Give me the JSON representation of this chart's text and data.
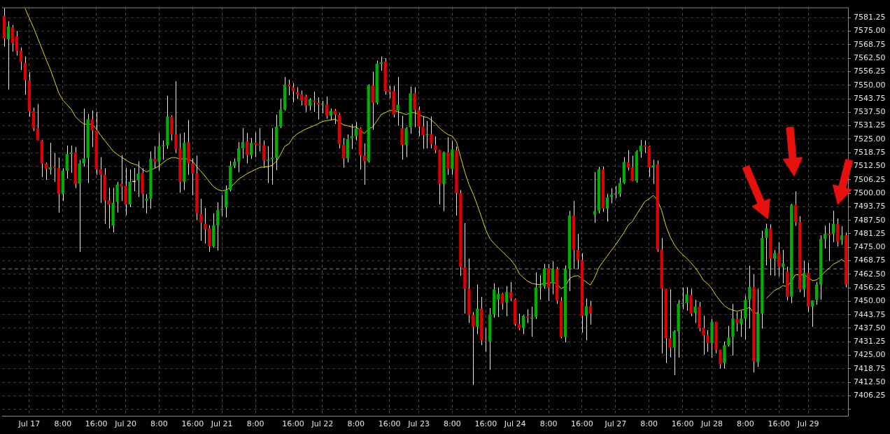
{
  "chart_data": {
    "type": "candlestick",
    "categories": [
      null,
      null,
      null,
      null,
      null,
      null,
      "Jul 17",
      null,
      null,
      null,
      null,
      null,
      null,
      null,
      "8:00",
      null,
      null,
      null,
      null,
      null,
      null,
      null,
      "16:00",
      null,
      null,
      null,
      null,
      null,
      null,
      "Jul 20",
      null,
      null,
      null,
      null,
      null,
      null,
      null,
      "8:00",
      null,
      null,
      null,
      null,
      null,
      null,
      null,
      "16:00",
      null,
      null,
      null,
      null,
      null,
      null,
      "Jul 21",
      null,
      null,
      null,
      null,
      null,
      null,
      null,
      "8:00",
      null,
      null,
      null,
      null,
      null,
      null,
      null,
      null,
      "16:00",
      null,
      null,
      null,
      null,
      null,
      null,
      "Jul 22",
      null,
      null,
      null,
      null,
      null,
      null,
      null,
      "8:00",
      null,
      null,
      null,
      null,
      null,
      null,
      null,
      "16:00",
      null,
      null,
      null,
      null,
      null,
      null,
      "Jul 23",
      null,
      null,
      null,
      null,
      null,
      null,
      null,
      "8:00",
      null,
      null,
      null,
      null,
      null,
      null,
      null,
      "16:00",
      null,
      null,
      null,
      null,
      null,
      null,
      "Jul 24",
      null,
      null,
      null,
      null,
      null,
      null,
      null,
      "8:00",
      null,
      null,
      null,
      null,
      null,
      null,
      null,
      "16:00",
      null,
      null,
      null,
      null,
      null,
      null,
      null,
      "Jul 27",
      null,
      null,
      null,
      null,
      null,
      null,
      null,
      "8:00",
      null,
      null,
      null,
      null,
      null,
      null,
      null,
      "16:00",
      null,
      null,
      null,
      null,
      null,
      null,
      "Jul 28",
      null,
      null,
      null,
      null,
      null,
      null,
      null,
      "8:00",
      null,
      null,
      null,
      null,
      null,
      null,
      null,
      "16:00",
      null,
      null,
      null,
      null,
      null,
      null,
      "Jul 29",
      null,
      null,
      null,
      null,
      null,
      null,
      null,
      null,
      null
    ],
    "ylim": [
      7397,
      7586
    ],
    "yticks": [
      {
        "value": 7400,
        "label": null
      },
      7406.25,
      {
        "value": 7412.5,
        "label": "7412.50"
      },
      7418.75,
      {
        "value": 7425,
        "label": "7425.00"
      },
      7431.25,
      {
        "value": 7437.5,
        "label": "7437.50"
      },
      7443.75,
      {
        "value": 7450,
        "label": "7450.00"
      },
      7456.25,
      {
        "value": 7462.5,
        "label": "7462.50"
      },
      7468.75,
      {
        "value": 7475,
        "label": "7475.00"
      },
      7481.25,
      {
        "value": 7487.5,
        "label": "7487.50"
      },
      7493.75,
      {
        "value": 7500,
        "label": "7500.00"
      },
      7506.25,
      {
        "value": 7512.5,
        "label": "7512.50"
      },
      7518.75,
      {
        "value": 7525,
        "label": "7525.00"
      },
      7531.25,
      {
        "value": 7537.5,
        "label": "7537.50"
      },
      7543.75,
      {
        "value": 7550,
        "label": "7550.00"
      },
      7556.25,
      {
        "value": 7562.5,
        "label": "7562.50"
      },
      7568.75,
      {
        "value": 7575,
        "label": "7575.00"
      },
      7581.25
    ],
    "grid": true,
    "legend": false,
    "marker": "none",
    "line_style": "solid",
    "ref_lines": [
      {
        "axis": "y",
        "value": 7465,
        "color": "#8c8c8c",
        "line_style": "dashed"
      }
    ],
    "series": [
      {
        "color": "#e8e8e8",
        "colors": [
          "#e00000",
          "#00b000",
          "#e00000",
          "#e00000",
          "#e00000",
          "#e00000",
          "#e00000",
          "#e00000",
          "#e00000",
          "#e00000",
          "#e00000",
          "#00b000",
          "#e00000",
          "#e00000",
          "#00b000",
          "#00b000",
          "#00b000",
          "#e00000",
          "#00b000",
          "#00b000",
          "#00b000",
          "#e00000",
          "#e00000",
          "#e00000",
          "#e00000",
          "#e00000",
          "#00b000",
          "#00b000",
          "#e00000",
          "#e00000",
          "#00b000",
          "#ffff00",
          "#00b000",
          "#e00000",
          "#00b000",
          "#00b000",
          "#e00000",
          "#00b000",
          "#00b000",
          "#00b000",
          "#e00000",
          "#e00000",
          "#e00000",
          "#00b000",
          "#e00000",
          "#e00000",
          "#e00000",
          "#e00000",
          "#e00000",
          "#e00000",
          "#00b000",
          "#00b000",
          "#00b000",
          "#00b000",
          "#00b000",
          "#00b000",
          "#00b000",
          "#00b000",
          "#e00000",
          "#00b000",
          "#e00000",
          "#e00000",
          "#e00000",
          "#00b000",
          "#00b000",
          "#00b000",
          "#00b000",
          "#00b000",
          "#e00000",
          "#e00000",
          "#e00000",
          "#e00000",
          "#e00000",
          "#00b000",
          "#e00000",
          "#e00000",
          "#00b000",
          "#e00000",
          "#00b000",
          "#e00000",
          "#e00000",
          "#e00000",
          "#00b000",
          "#00b000",
          "#00b000",
          "#e00000",
          "#e00000",
          "#00b000",
          "#e00000",
          "#00b000",
          "#00b000",
          "#e00000",
          "#e00000",
          "#e00000",
          "#00b000",
          "#e00000",
          "#00b000",
          "#00b000",
          "#e00000",
          "#e00000",
          "#e00000",
          "#00b000",
          "#e00000",
          "#e00000",
          "#e00000",
          "#00b000",
          "#e00000",
          "#00b000",
          "#e00000",
          "#e00000",
          "#e00000",
          "#e00000",
          "#e00000",
          "#00b000",
          "#e00000",
          "#e00000",
          "#00b000",
          "#00b000",
          "#00b000",
          "#e00000",
          "#00b000",
          "#e00000",
          "#e00000",
          "#e00000",
          "#00b000",
          "#e00000",
          "#00b000",
          "#00b000",
          "#00b000",
          "#00b000",
          "#e00000",
          "#00b000",
          "#e00000",
          "#e00000",
          "#00b000",
          "#00b000",
          "#e00000",
          "#e00000",
          "#e00000",
          "#00b000",
          "#e00000",
          "#00b000",
          "#00b000",
          "#e00000",
          "#00b000",
          "#00b000",
          "#00b000",
          "#00b000",
          "#00b000",
          "#e00000",
          "#e00000",
          "#00b000",
          "#00b000",
          "#e00000",
          "#e00000",
          "#00b000",
          "#e00000",
          "#e00000",
          "#e00000",
          "#e00000",
          "#00b000",
          "#00b000",
          "#00b000",
          "#00b000",
          "#e00000",
          "#00b000",
          "#e00000",
          "#e00000",
          "#e00000",
          "#00b000",
          "#e00000",
          "#e00000",
          "#00b000",
          "#00b000",
          "#00b000",
          "#e00000",
          "#00b000",
          "#00b000",
          "#00b000",
          "#e00000",
          "#00b000",
          "#00b000",
          "#00b000",
          "#e00000",
          "#00b000",
          "#e00000",
          "#00b000",
          "#e00000",
          "#00b000",
          "#e00000",
          "#e00000",
          "#00b000",
          "#e00000",
          "#00b000",
          "#00b000",
          "#00b000",
          "#00b000",
          "#e00000",
          "#00b000",
          "#e00000",
          "#00b000",
          "#e00000"
        ],
        "ohlc": [
          [
            7582.1,
            7585.6,
            7567.8,
            7571.6
          ],
          [
            7571.3,
            7579.6,
            7547.9,
            7577.1
          ],
          [
            7576.8,
            7577.9,
            7565.6,
            7569.4
          ],
          [
            7572.6,
            7575.1,
            7563.7,
            7565.9
          ],
          [
            7566.0,
            7567.5,
            7557.0,
            7560.8
          ],
          [
            7560.3,
            7563.3,
            7545.6,
            7552.3
          ],
          [
            7552.2,
            7556.1,
            7535.4,
            7537.9
          ],
          [
            7538.1,
            7539.6,
            7528.8,
            7530.1
          ],
          [
            7530.1,
            7541.3,
            7524.4,
            7524.6
          ],
          [
            7524.4,
            7524.7,
            7507.5,
            7513.8
          ],
          [
            7513.7,
            7514.2,
            7506.2,
            7511.3
          ],
          [
            7511.0,
            7523.3,
            7508.7,
            7512.0
          ],
          [
            7512.2,
            7518.6,
            7505.3,
            7511.6
          ],
          [
            7511.6,
            7516.5,
            7491.1,
            7499.8
          ],
          [
            7499.8,
            7511.6,
            7496.4,
            7510.4
          ],
          [
            7510.4,
            7522.1,
            7506.8,
            7518.2
          ],
          [
            7518.2,
            7522.1,
            7509.4,
            7518.9
          ],
          [
            7518.9,
            7521.4,
            7502.4,
            7504.3
          ],
          [
            7504.5,
            7515.4,
            7472.9,
            7513.8
          ],
          [
            7513.8,
            7539.2,
            7512.3,
            7516.1
          ],
          [
            7516.4,
            7536.7,
            7504.7,
            7534.3
          ],
          [
            7534.3,
            7538.3,
            7521.4,
            7529.1
          ],
          [
            7529.1,
            7537.7,
            7508.5,
            7511.0
          ],
          [
            7511.0,
            7516.7,
            7495.5,
            7508.5
          ],
          [
            7508.5,
            7511.6,
            7485.9,
            7496.7
          ],
          [
            7496.7,
            7502.5,
            7483.7,
            7494.8
          ],
          [
            7485.0,
            7502.5,
            7481.8,
            7495.6
          ],
          [
            7496.0,
            7505.3,
            7491.1,
            7504.0
          ],
          [
            7504.4,
            7517.6,
            7496.4,
            7503.1
          ],
          [
            7503.4,
            7511.9,
            7489.8,
            7494.8
          ],
          [
            7494.8,
            7511.0,
            7493.5,
            7505.3
          ],
          [
            7505.2,
            7511.7,
            7500.9,
            7505.2
          ],
          [
            7505.9,
            7514.8,
            7498.3,
            7509.1
          ],
          [
            7509.5,
            7511.6,
            7493.2,
            7499.8
          ],
          [
            7496.6,
            7499.6,
            7490.7,
            7497.5
          ],
          [
            7497.4,
            7519.3,
            7492.8,
            7516.0
          ],
          [
            7516.0,
            7521.8,
            7511.7,
            7514.5
          ],
          [
            7514.5,
            7527.8,
            7510.4,
            7521.8
          ],
          [
            7521.8,
            7524.4,
            7515.5,
            7522.3
          ],
          [
            7522.1,
            7545.1,
            7520.5,
            7535.5
          ],
          [
            7535.5,
            7536.0,
            7524.4,
            7527.3
          ],
          [
            7527.2,
            7551.9,
            7518.6,
            7520.5
          ],
          [
            7520.8,
            7527.5,
            7500.2,
            7505.3
          ],
          [
            7505.3,
            7528.1,
            7501.5,
            7523.3
          ],
          [
            7523.6,
            7533.9,
            7508.5,
            7513.9
          ],
          [
            7513.9,
            7516.1,
            7499.0,
            7509.1
          ],
          [
            7509.1,
            7517.4,
            7487.5,
            7490.7
          ],
          [
            7490.4,
            7497.4,
            7478.0,
            7486.3
          ],
          [
            7485.9,
            7493.2,
            7476.7,
            7483.3
          ],
          [
            7483.7,
            7485.2,
            7472.9,
            7475.5
          ],
          [
            7475.5,
            7490.7,
            7474.8,
            7485.2
          ],
          [
            7485.0,
            7495.8,
            7473.5,
            7492.2
          ],
          [
            7492.2,
            7499.2,
            7489.4,
            7492.7
          ],
          [
            7493.4,
            7503.6,
            7488.8,
            7501.5
          ],
          [
            7501.5,
            7514.8,
            7500.9,
            7512.7
          ],
          [
            7512.7,
            7516.1,
            7511.6,
            7514.5
          ],
          [
            7514.5,
            7523.7,
            7509.7,
            7520.8
          ],
          [
            7520.8,
            7530.1,
            7516.1,
            7523.7
          ],
          [
            7524.0,
            7527.9,
            7513.8,
            7517.6
          ],
          [
            7517.6,
            7525.6,
            7515.9,
            7523.3
          ],
          [
            7523.3,
            7528.1,
            7516.7,
            7522.4
          ],
          [
            7522.7,
            7530.1,
            7519.3,
            7522.1
          ],
          [
            7522.1,
            7524.4,
            7511.7,
            7515.1
          ],
          [
            7515.1,
            7521.8,
            7504.7,
            7515.5
          ],
          [
            7515.7,
            7530.1,
            7504.0,
            7516.5
          ],
          [
            7516.5,
            7536.4,
            7510.6,
            7530.9
          ],
          [
            7530.9,
            7543.8,
            7530.1,
            7538.7
          ],
          [
            7538.7,
            7553.8,
            7538.3,
            7550.3
          ],
          [
            7550.3,
            7552.5,
            7545.3,
            7549.5
          ],
          [
            7549.0,
            7551.0,
            7542.1,
            7547.2
          ],
          [
            7546.8,
            7549.1,
            7543.6,
            7545.6
          ],
          [
            7545.7,
            7547.5,
            7540.6,
            7542.8
          ],
          [
            7544.9,
            7545.6,
            7537.7,
            7540.5
          ],
          [
            7540.5,
            7544.0,
            7538.3,
            7543.4
          ],
          [
            7543.0,
            7547.0,
            7537.7,
            7542.1
          ],
          [
            7541.9,
            7544.4,
            7534.1,
            7541.1
          ],
          [
            7540.9,
            7542.8,
            7537.0,
            7541.4
          ],
          [
            7541.0,
            7544.7,
            7534.5,
            7535.8
          ],
          [
            7535.8,
            7539.2,
            7533.9,
            7538.2
          ],
          [
            7538.3,
            7539.0,
            7532.0,
            7536.4
          ],
          [
            7536.4,
            7537.0,
            7520.8,
            7522.7
          ],
          [
            7522.4,
            7525.6,
            7511.9,
            7516.1
          ],
          [
            7516.1,
            7527.2,
            7514.2,
            7525.0
          ],
          [
            7525.5,
            7532.0,
            7520.5,
            7526.4
          ],
          [
            7526.4,
            7533.0,
            7524.4,
            7530.1
          ],
          [
            7530.1,
            7530.5,
            7511.0,
            7517.4
          ],
          [
            7517.4,
            7523.1,
            7504.0,
            7514.8
          ],
          [
            7514.8,
            7550.4,
            7514.2,
            7549.8
          ],
          [
            7549.8,
            7556.1,
            7529.4,
            7541.9
          ],
          [
            7541.9,
            7561.4,
            7541.1,
            7559.9
          ],
          [
            7559.9,
            7563.3,
            7556.7,
            7560.7
          ],
          [
            7560.9,
            7562.5,
            7545.6,
            7547.2
          ],
          [
            7547.7,
            7549.7,
            7544.0,
            7546.8
          ],
          [
            7547.2,
            7549.7,
            7535.1,
            7536.4
          ],
          [
            7538.3,
            7553.8,
            7531.3,
            7540.9
          ],
          [
            7530.1,
            7535.8,
            7515.5,
            7522.4
          ],
          [
            7522.4,
            7530.7,
            7516.7,
            7530.1
          ],
          [
            7530.5,
            7549.4,
            7527.5,
            7546.3
          ],
          [
            7546.3,
            7549.1,
            7530.5,
            7538.6
          ],
          [
            7538.6,
            7540.2,
            7526.3,
            7530.9
          ],
          [
            7530.9,
            7535.8,
            7520.5,
            7526.9
          ],
          [
            7526.9,
            7533.4,
            7520.8,
            7527.4
          ],
          [
            7527.4,
            7535.5,
            7520.8,
            7522.8
          ],
          [
            7522.3,
            7526.3,
            7518.6,
            7519.9
          ],
          [
            7519.9,
            7520.1,
            7494.8,
            7504.3
          ],
          [
            7504.3,
            7519.3,
            7491.7,
            7518.9
          ],
          [
            7518.9,
            7525.9,
            7508.5,
            7511.3
          ],
          [
            7511.3,
            7524.4,
            7508.5,
            7520.3
          ],
          [
            7519.9,
            7521.6,
            7489.7,
            7500.0
          ],
          [
            7500.0,
            7501.5,
            7461.7,
            7465.9
          ],
          [
            7465.7,
            7486.2,
            7444.3,
            7455.8
          ],
          [
            7455.8,
            7469.8,
            7439.9,
            7443.7
          ],
          [
            7443.7,
            7445.0,
            7411.3,
            7438.2
          ],
          [
            7438.2,
            7457.7,
            7434.8,
            7446.6
          ],
          [
            7446.6,
            7452.0,
            7429.7,
            7431.9
          ],
          [
            7431.9,
            7437.6,
            7426.6,
            7431.4
          ],
          [
            7431.4,
            7446.9,
            7418.3,
            7444.0
          ],
          [
            7444.0,
            7458.3,
            7442.4,
            7455.5
          ],
          [
            7450.7,
            7456.4,
            7442.7,
            7453.5
          ],
          [
            7453.5,
            7453.9,
            7446.2,
            7449.0
          ],
          [
            7449.4,
            7457.0,
            7443.1,
            7454.3
          ],
          [
            7454.3,
            7458.9,
            7450.1,
            7451.3
          ],
          [
            7450.9,
            7451.3,
            7438.6,
            7439.5
          ],
          [
            7439.5,
            7444.3,
            7436.7,
            7437.4
          ],
          [
            7437.6,
            7443.7,
            7434.8,
            7443.3
          ],
          [
            7443.1,
            7446.3,
            7439.9,
            7442.4
          ],
          [
            7442.0,
            7447.5,
            7433.6,
            7442.4
          ],
          [
            7442.8,
            7463.4,
            7441.8,
            7456.4
          ],
          [
            7456.4,
            7462.1,
            7450.7,
            7457.0
          ],
          [
            7457.0,
            7467.2,
            7455.8,
            7465.3
          ],
          [
            7465.3,
            7467.2,
            7450.1,
            7456.4
          ],
          [
            7458.3,
            7468.5,
            7453.2,
            7464.9
          ],
          [
            7464.9,
            7465.9,
            7448.8,
            7450.3
          ],
          [
            7450.1,
            7451.9,
            7432.9,
            7433.5
          ],
          [
            7433.5,
            7466.6,
            7431.0,
            7464.9
          ],
          [
            7464.9,
            7491.9,
            7454.8,
            7489.8
          ],
          [
            7489.8,
            7496.4,
            7464.9,
            7473.8
          ],
          [
            7473.8,
            7481.2,
            7464.9,
            7469.1
          ],
          [
            7469.1,
            7472.3,
            7435.5,
            7443.3
          ],
          [
            7443.3,
            7451.3,
            7431.9,
            7447.8
          ],
          [
            7447.8,
            7450.1,
            7439.3,
            7444.3
          ],
          [
            7490.1,
            7509.7,
            7486.3,
            7491.6
          ],
          [
            7491.9,
            7512.3,
            7490.7,
            7511.0
          ],
          [
            7511.0,
            7512.3,
            7491.4,
            7492.9
          ],
          [
            7492.9,
            7499.6,
            7486.9,
            7498.1
          ],
          [
            7498.3,
            7502.4,
            7495.4,
            7499.3
          ],
          [
            7499.3,
            7503.4,
            7497.7,
            7499.5
          ],
          [
            7499.6,
            7507.2,
            7498.3,
            7504.7
          ],
          [
            7504.7,
            7516.7,
            7504.3,
            7514.4
          ],
          [
            7514.4,
            7519.9,
            7510.6,
            7511.9
          ],
          [
            7511.9,
            7517.4,
            7505.6,
            7505.7
          ],
          [
            7505.7,
            7519.9,
            7505.0,
            7519.3
          ],
          [
            7519.3,
            7524.6,
            7516.5,
            7522.1
          ],
          [
            7522.1,
            7524.4,
            7518.6,
            7521.6
          ],
          [
            7521.8,
            7522.1,
            7507.6,
            7511.9
          ],
          [
            7511.9,
            7515.5,
            7504.3,
            7512.9
          ],
          [
            7513.3,
            7515.2,
            7472.9,
            7473.9
          ],
          [
            7473.9,
            7479.3,
            7425.9,
            7455.8
          ],
          [
            7455.8,
            7455.8,
            7421.4,
            7432.9
          ],
          [
            7432.9,
            7455.5,
            7424.0,
            7428.5
          ],
          [
            7428.5,
            7436.7,
            7415.8,
            7436.1
          ],
          [
            7436.1,
            7450.7,
            7423.9,
            7448.8
          ],
          [
            7448.8,
            7456.4,
            7446.3,
            7449.2
          ],
          [
            7449.2,
            7456.6,
            7445.6,
            7453.2
          ],
          [
            7452.9,
            7455.8,
            7443.1,
            7444.3
          ],
          [
            7444.6,
            7450.7,
            7439.9,
            7447.5
          ],
          [
            7447.5,
            7449.7,
            7436.1,
            7437.6
          ],
          [
            7437.6,
            7443.3,
            7425.3,
            7434.2
          ],
          [
            7434.2,
            7436.7,
            7426.6,
            7430.7
          ],
          [
            7430.7,
            7441.8,
            7423.8,
            7440.5
          ],
          [
            7440.5,
            7440.5,
            7425.9,
            7427.6
          ],
          [
            7427.6,
            7427.6,
            7418.9,
            7420.8
          ],
          [
            7421.4,
            7431.4,
            7418.9,
            7429.7
          ],
          [
            7429.7,
            7438.6,
            7429.1,
            7433.2
          ],
          [
            7433.5,
            7448.8,
            7424.9,
            7442.0
          ],
          [
            7441.8,
            7445.0,
            7436.1,
            7439.9
          ],
          [
            7439.5,
            7445.6,
            7433.6,
            7442.0
          ],
          [
            7442.0,
            7452.6,
            7432.3,
            7450.7
          ],
          [
            7450.7,
            7466.5,
            7437.4,
            7456.6
          ],
          [
            7456.6,
            7462.4,
            7417.0,
            7422.1
          ],
          [
            7421.7,
            7455.8,
            7419.6,
            7444.3
          ],
          [
            7444.3,
            7482.7,
            7437.4,
            7479.3
          ],
          [
            7479.3,
            7485.9,
            7466.6,
            7483.7
          ],
          [
            7483.7,
            7485.6,
            7462.1,
            7469.8
          ],
          [
            7469.8,
            7473.8,
            7461.8,
            7472.3
          ],
          [
            7472.3,
            7477.4,
            7461.5,
            7465.9
          ],
          [
            7465.9,
            7473.8,
            7458.3,
            7467.5
          ],
          [
            7463.9,
            7466.0,
            7450.4,
            7452.0
          ],
          [
            7452.2,
            7495.1,
            7449.2,
            7494.7
          ],
          [
            7494.7,
            7500.9,
            7484.9,
            7486.6
          ],
          [
            7486.6,
            7489.4,
            7454.2,
            7455.5
          ],
          [
            7455.5,
            7468.7,
            7451.9,
            7463.1
          ],
          [
            7463.1,
            7467.8,
            7445.0,
            7447.5
          ],
          [
            7447.5,
            7450.4,
            7438.2,
            7450.4
          ],
          [
            7450.7,
            7458.9,
            7448.4,
            7457.7
          ],
          [
            7457.7,
            7480.5,
            7450.7,
            7478.9
          ],
          [
            7478.9,
            7485.0,
            7474.4,
            7481.2
          ],
          [
            7481.2,
            7486.2,
            7468.7,
            7480.5
          ],
          [
            7481.2,
            7491.9,
            7477.4,
            7485.9
          ],
          [
            7485.9,
            7488.4,
            7475.4,
            7477.6
          ],
          [
            7478.2,
            7484.7,
            7476.1,
            7480.5
          ],
          [
            7480.5,
            7481.8,
            7456.4,
            7457.7
          ]
        ]
      },
      {
        "type": "line",
        "color": "#e6dc00",
        "values": [
          null,
          null,
          null,
          null,
          null,
          7585.5,
          7581,
          7576.7,
          7571.8,
          7566.9,
          7562,
          7557.4,
          7552,
          7546.6,
          7543.1,
          7541,
          7538.9,
          7535.5,
          7533.5,
          7532,
          7532,
          7532,
          7529.7,
          7527,
          7524.4,
          7522,
          7519.5,
          7518,
          7516.7,
          7515.5,
          7514.2,
          7513.5,
          7512.9,
          7511,
          7509.9,
          7510.8,
          7511.6,
          7512.7,
          7514.2,
          7515.7,
          7516.5,
          7516.5,
          7515.7,
          7516.1,
          7515.7,
          7514.8,
          7512.3,
          7510.1,
          7507.8,
          7505.3,
          7503,
          7501.7,
          7501.1,
          7501.5,
          7502.7,
          7504.6,
          7506.5,
          7507.8,
          7509.1,
          7510,
          7511,
          7511.9,
          7512.1,
          7512.3,
          7512.9,
          7514.8,
          7518,
          7521.8,
          7522.8,
          7525.9,
          7527.5,
          7528.6,
          7529.7,
          7530.5,
          7531.3,
          7532.2,
          7533.2,
          7533.6,
          7533.9,
          7534.3,
          7533,
          7531.7,
          7531.2,
          7530.7,
          7530.7,
          7529.2,
          7527.6,
          7529.7,
          7530.7,
          7533.5,
          7536.4,
          7537.3,
          7538.3,
          7538.3,
          7537.7,
          7537.1,
          7536.4,
          7537.3,
          7537.3,
          7536.4,
          7535.5,
          7535.1,
          7533.9,
          7532.2,
          7530.1,
          7528.5,
          7527.1,
          7526.5,
          7523.7,
          7516.7,
          7509.7,
          7504,
          7499.6,
          7494.4,
          7488.8,
          7483.1,
          7478.9,
          7476.7,
          7474.8,
          7472.9,
          7471,
          7469.1,
          7466.6,
          7462.8,
          7460.9,
          7459.3,
          7458.3,
          7457.9,
          7457.7,
          7458.3,
          7458.3,
          7458.8,
          7458.1,
          7455.8,
          7457,
          7460.5,
          7461.6,
          7461.9,
          7460.5,
          7458.9,
          7457.5,
          7460.9,
          7465.6,
          7468.3,
          7471,
          7473.6,
          7476.1,
          7479,
          7481.8,
          7485.2,
          7486.9,
          7490.1,
          7493.2,
          7496.2,
          7497.4,
          7499,
          7496.7,
          7492,
          7485,
          7479.9,
          7476.3,
          7473.5,
          7471.6,
          7469.9,
          7467.8,
          7465.6,
          7462.8,
          7459.6,
          7458.1,
          7455.8,
          7452.6,
          7450.1,
          7447.9,
          7446.6,
          7445.9,
          7445.4,
          7445.9,
          7446.3,
          7447.2,
          7444.6,
          7444.6,
          null,
          7451.3,
          7453.2,
          7455.1,
          7456,
          7457.3,
          7456.7,
          7459.6,
          7462.4,
          7462.1,
          7462.4,
          7460.9,
          7459.6,
          7459.9,
          7461.5,
          7463.7,
          7465.3,
          7467.2,
          7468.1,
          7469.4,
          7467.8
        ]
      }
    ]
  }
}
